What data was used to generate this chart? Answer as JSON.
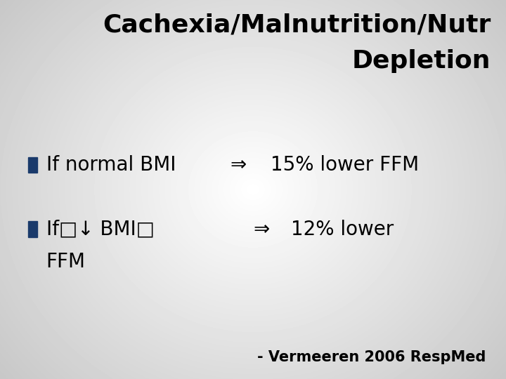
{
  "title_line1": "Cachexia/Malnutrition/Nutr",
  "title_line2": "Depletion",
  "title_fontsize": 26,
  "title_fontweight": "bold",
  "title_color": "#000000",
  "bullet_color": "#1a3a6b",
  "bullet1_left": "If normal BMI",
  "bullet1_arrow": "⇒",
  "bullet1_right": "15% lower FFM",
  "bullet2_line1": "If□↓ BMI□",
  "bullet2_line2": "FFM",
  "bullet2_arrow": "⇒",
  "bullet2_right": "12% lower",
  "footnote": "- Vermeeren 2006 RespMed",
  "text_fontsize": 20,
  "footnote_fontsize": 15,
  "fig_width": 7.2,
  "fig_height": 5.4,
  "dpi": 100
}
